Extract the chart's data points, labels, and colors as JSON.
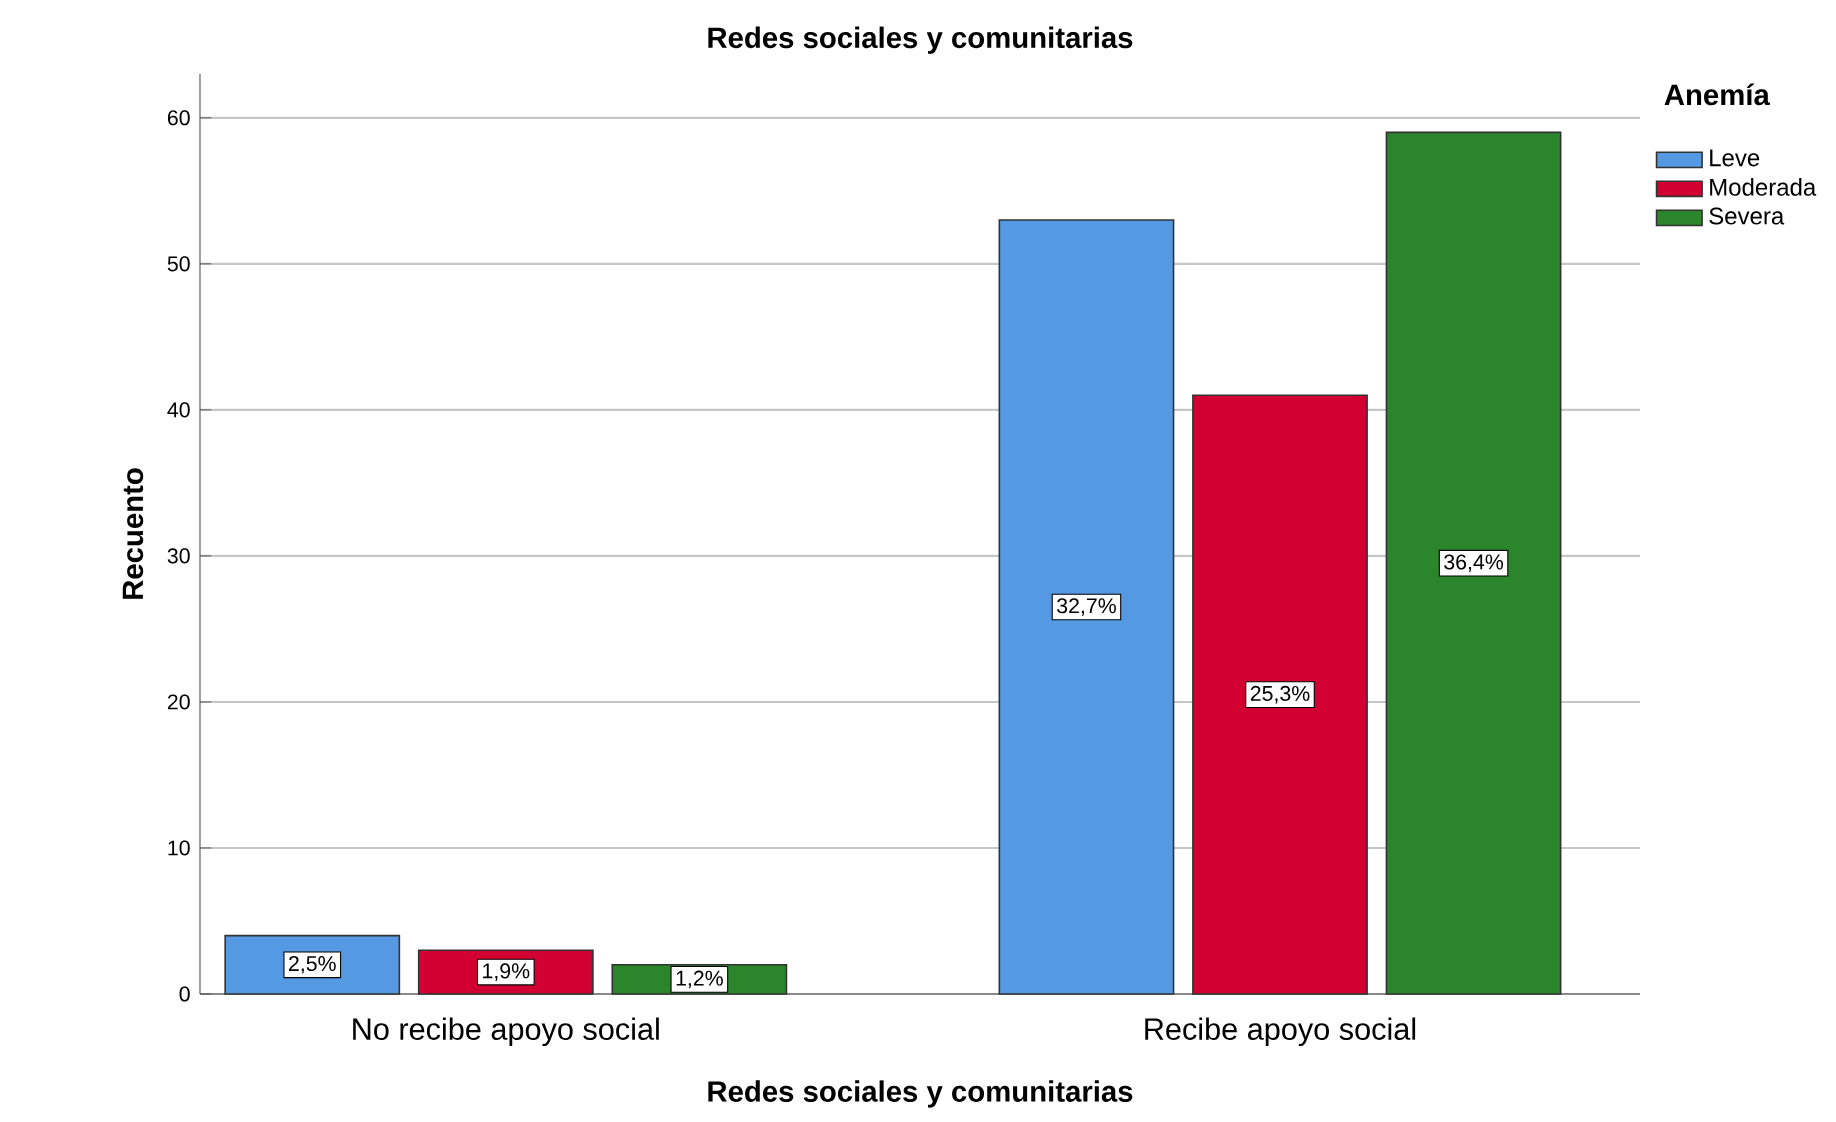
{
  "chart_data": {
    "type": "bar",
    "title": "Redes sociales y comunitarias",
    "xlabel": "Redes sociales y comunitarias",
    "ylabel": "Recuento",
    "legend_title": "Anemía",
    "categories": [
      "No recibe apoyo social",
      "Recibe apoyo social"
    ],
    "series": [
      {
        "name": "Leve",
        "color": "#5599e3",
        "values": [
          4,
          53
        ]
      },
      {
        "name": "Moderada",
        "color": "#d20032",
        "values": [
          3,
          41
        ]
      },
      {
        "name": "Severa",
        "color": "#2b862b",
        "values": [
          2,
          59
        ]
      }
    ],
    "annotations": [
      "2,5%",
      "32,7%",
      "1,9%",
      "25,3%",
      "1,2%",
      "36,4%"
    ],
    "ylim": [
      0,
      63
    ],
    "yticks": [
      0,
      10,
      20,
      30,
      40,
      50,
      60
    ],
    "grid": "y",
    "legend": "right"
  }
}
